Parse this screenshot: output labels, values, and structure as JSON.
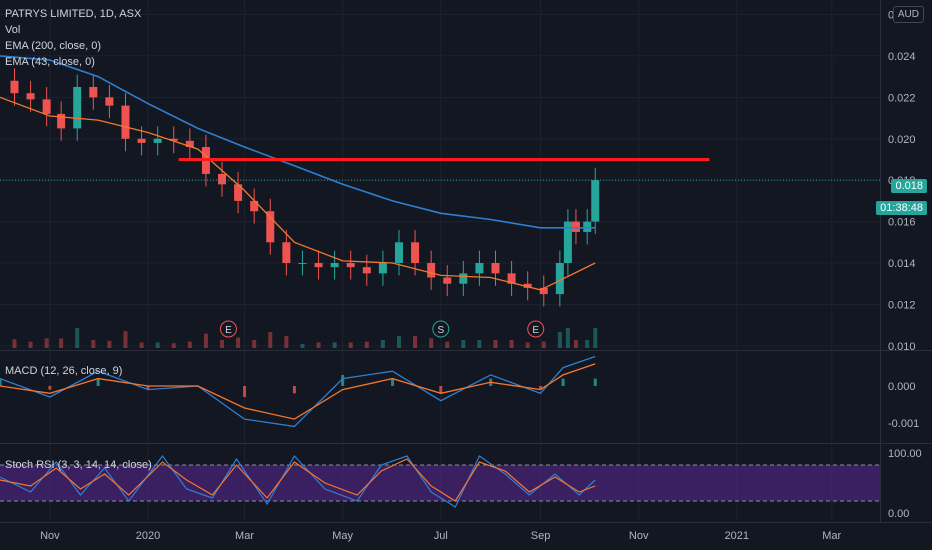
{
  "header": {
    "symbol_line": "PATRYS LIMITED, 1D, ASX",
    "indicators": [
      "Vol",
      "EMA (200, close, 0)",
      "EMA (43, close, 0)"
    ],
    "currency": "AUD"
  },
  "colors": {
    "bg": "#131722",
    "grid": "#1e222d",
    "up": "#26a69a",
    "down": "#ef5350",
    "ema200": "#2f7fd1",
    "ema43": "#f4772e",
    "resistance": "#ff1b1b",
    "macd": "#2f7fd1",
    "signal": "#f4772e",
    "stoch_k": "#2f7fd1",
    "stoch_d": "#f4772e",
    "stoch_band": "#6a2bb0",
    "axis_text": "#b2b5be"
  },
  "price_tags": {
    "last": "0.018",
    "countdown": "01:38:48"
  },
  "chart_data": [
    {
      "type": "candlestick",
      "pane": "price",
      "title": "PATRYS LIMITED, 1D, ASX",
      "y_ticks": [
        "0.010",
        "0.012",
        "0.014",
        "0.016",
        "0.018",
        "0.020",
        "0.022",
        "0.024",
        "0.026"
      ],
      "ylim": [
        0.0098,
        0.0267
      ],
      "x_ticks": [
        "Nov",
        "2020",
        "Mar",
        "May",
        "Jul",
        "Sep",
        "Nov",
        "2021",
        "Mar"
      ],
      "x_range_months": [
        "2019-10-01",
        "2021-03-31"
      ],
      "close_series": [
        [
          "2019-10-01",
          0.0228
        ],
        [
          "2019-10-10",
          0.0222
        ],
        [
          "2019-10-20",
          0.0219
        ],
        [
          "2019-10-30",
          0.0212
        ],
        [
          "2019-11-08",
          0.0205
        ],
        [
          "2019-11-18",
          0.0225
        ],
        [
          "2019-11-28",
          0.022
        ],
        [
          "2019-12-08",
          0.0216
        ],
        [
          "2019-12-18",
          0.02
        ],
        [
          "2019-12-28",
          0.0198
        ],
        [
          "2020-01-07",
          0.02
        ],
        [
          "2020-01-17",
          0.0199
        ],
        [
          "2020-01-27",
          0.0196
        ],
        [
          "2020-02-06",
          0.0183
        ],
        [
          "2020-02-16",
          0.0178
        ],
        [
          "2020-02-26",
          0.017
        ],
        [
          "2020-03-07",
          0.0165
        ],
        [
          "2020-03-17",
          0.015
        ],
        [
          "2020-03-27",
          0.014
        ],
        [
          "2020-04-06",
          0.014
        ],
        [
          "2020-04-16",
          0.0138
        ],
        [
          "2020-04-26",
          0.014
        ],
        [
          "2020-05-06",
          0.0138
        ],
        [
          "2020-05-16",
          0.0135
        ],
        [
          "2020-05-26",
          0.014
        ],
        [
          "2020-06-05",
          0.015
        ],
        [
          "2020-06-15",
          0.014
        ],
        [
          "2020-06-25",
          0.0133
        ],
        [
          "2020-07-05",
          0.013
        ],
        [
          "2020-07-15",
          0.0135
        ],
        [
          "2020-07-25",
          0.014
        ],
        [
          "2020-08-04",
          0.0135
        ],
        [
          "2020-08-14",
          0.013
        ],
        [
          "2020-08-24",
          0.0128
        ],
        [
          "2020-09-03",
          0.0125
        ],
        [
          "2020-09-13",
          0.014
        ],
        [
          "2020-09-18",
          0.016
        ],
        [
          "2020-09-23",
          0.0155
        ],
        [
          "2020-09-30",
          0.016
        ],
        [
          "2020-10-05",
          0.018
        ]
      ],
      "ema200": [
        [
          "2019-10-01",
          0.024
        ],
        [
          "2019-11-01",
          0.0238
        ],
        [
          "2019-12-01",
          0.023
        ],
        [
          "2020-01-01",
          0.0217
        ],
        [
          "2020-02-01",
          0.0205
        ],
        [
          "2020-03-01",
          0.0196
        ],
        [
          "2020-04-01",
          0.0187
        ],
        [
          "2020-05-01",
          0.0178
        ],
        [
          "2020-06-01",
          0.017
        ],
        [
          "2020-07-01",
          0.0164
        ],
        [
          "2020-08-01",
          0.0161
        ],
        [
          "2020-09-01",
          0.0157
        ],
        [
          "2020-10-05",
          0.0157
        ]
      ],
      "ema43": [
        [
          "2019-10-01",
          0.022
        ],
        [
          "2019-11-01",
          0.0211
        ],
        [
          "2019-12-01",
          0.0209
        ],
        [
          "2020-01-01",
          0.0203
        ],
        [
          "2020-02-01",
          0.0195
        ],
        [
          "2020-03-01",
          0.0175
        ],
        [
          "2020-04-01",
          0.015
        ],
        [
          "2020-05-01",
          0.0141
        ],
        [
          "2020-06-01",
          0.014
        ],
        [
          "2020-07-01",
          0.0134
        ],
        [
          "2020-08-01",
          0.0133
        ],
        [
          "2020-09-01",
          0.0127
        ],
        [
          "2020-10-05",
          0.014
        ]
      ],
      "resistance_line": {
        "y": 0.019,
        "x_start": "2020-01-20",
        "x_end": "2020-12-15"
      },
      "event_markers": [
        {
          "label": "E",
          "date": "2020-02-20"
        },
        {
          "label": "S",
          "date": "2020-07-01"
        },
        {
          "label": "E",
          "date": "2020-08-29"
        }
      ]
    },
    {
      "type": "line",
      "pane": "macd",
      "title": "MACD (12, 26, close, 9)",
      "y_ticks": [
        "0.000",
        "-0.001"
      ],
      "ylim": [
        -0.00155,
        0.00095
      ],
      "series": [
        {
          "name": "MACD",
          "values": [
            [
              "2019-10-01",
              0.0002
            ],
            [
              "2019-11-01",
              -0.0003
            ],
            [
              "2019-12-01",
              0.0004
            ],
            [
              "2020-01-01",
              -0.0001
            ],
            [
              "2020-02-01",
              0.0
            ],
            [
              "2020-03-01",
              -0.0009
            ],
            [
              "2020-04-01",
              -0.0011
            ],
            [
              "2020-05-01",
              0.0002
            ],
            [
              "2020-06-01",
              0.0004
            ],
            [
              "2020-07-01",
              -0.0004
            ],
            [
              "2020-08-01",
              0.0003
            ],
            [
              "2020-09-01",
              -0.0002
            ],
            [
              "2020-09-15",
              0.0005
            ],
            [
              "2020-10-05",
              0.0008
            ]
          ]
        },
        {
          "name": "Signal",
          "values": [
            [
              "2019-10-01",
              0.0
            ],
            [
              "2019-11-01",
              -0.0002
            ],
            [
              "2019-12-01",
              0.0002
            ],
            [
              "2020-01-01",
              0.0
            ],
            [
              "2020-02-01",
              0.0
            ],
            [
              "2020-03-01",
              -0.0006
            ],
            [
              "2020-04-01",
              -0.0009
            ],
            [
              "2020-05-01",
              -0.0001
            ],
            [
              "2020-06-01",
              0.0002
            ],
            [
              "2020-07-01",
              -0.0002
            ],
            [
              "2020-08-01",
              0.0001
            ],
            [
              "2020-09-01",
              -0.0001
            ],
            [
              "2020-09-15",
              0.0003
            ],
            [
              "2020-10-05",
              0.0006
            ]
          ]
        }
      ]
    },
    {
      "type": "line",
      "pane": "stoch",
      "title": "Stoch RSI (3, 3, 14, 14, close)",
      "y_ticks": [
        "100.00",
        "0.00"
      ],
      "ylim": [
        -15,
        115
      ],
      "bands": [
        80,
        20
      ],
      "series": [
        {
          "name": "K",
          "values": [
            [
              "2019-10-01",
              60
            ],
            [
              "2019-10-20",
              35
            ],
            [
              "2019-11-05",
              85
            ],
            [
              "2019-11-20",
              30
            ],
            [
              "2019-12-05",
              75
            ],
            [
              "2019-12-20",
              20
            ],
            [
              "2020-01-10",
              95
            ],
            [
              "2020-01-25",
              40
            ],
            [
              "2020-02-10",
              25
            ],
            [
              "2020-02-25",
              90
            ],
            [
              "2020-03-15",
              15
            ],
            [
              "2020-04-01",
              95
            ],
            [
              "2020-04-20",
              40
            ],
            [
              "2020-05-10",
              20
            ],
            [
              "2020-05-25",
              80
            ],
            [
              "2020-06-10",
              95
            ],
            [
              "2020-06-25",
              35
            ],
            [
              "2020-07-10",
              10
            ],
            [
              "2020-07-25",
              95
            ],
            [
              "2020-08-10",
              65
            ],
            [
              "2020-08-25",
              30
            ],
            [
              "2020-09-10",
              65
            ],
            [
              "2020-09-25",
              30
            ],
            [
              "2020-10-05",
              55
            ]
          ]
        },
        {
          "name": "D",
          "values": [
            [
              "2019-10-01",
              55
            ],
            [
              "2019-10-20",
              45
            ],
            [
              "2019-11-05",
              75
            ],
            [
              "2019-11-20",
              40
            ],
            [
              "2019-12-05",
              65
            ],
            [
              "2019-12-20",
              30
            ],
            [
              "2020-01-10",
              85
            ],
            [
              "2020-01-25",
              55
            ],
            [
              "2020-02-10",
              30
            ],
            [
              "2020-02-25",
              80
            ],
            [
              "2020-03-15",
              25
            ],
            [
              "2020-04-01",
              85
            ],
            [
              "2020-04-20",
              50
            ],
            [
              "2020-05-10",
              30
            ],
            [
              "2020-05-25",
              70
            ],
            [
              "2020-06-10",
              90
            ],
            [
              "2020-06-25",
              45
            ],
            [
              "2020-07-10",
              20
            ],
            [
              "2020-07-25",
              85
            ],
            [
              "2020-08-10",
              70
            ],
            [
              "2020-08-25",
              35
            ],
            [
              "2020-09-10",
              60
            ],
            [
              "2020-09-25",
              35
            ],
            [
              "2020-10-05",
              45
            ]
          ]
        }
      ]
    }
  ]
}
